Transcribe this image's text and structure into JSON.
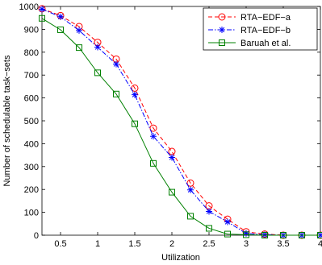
{
  "chart_data": {
    "type": "line",
    "xlabel": "Utilization",
    "ylabel": "Number of schedulable task−sets",
    "xlim": [
      0.25,
      4
    ],
    "ylim": [
      0,
      1000
    ],
    "xticks": [
      0.5,
      1,
      1.5,
      2,
      2.5,
      3,
      3.5,
      4
    ],
    "xtick_labels": [
      "0.5",
      "1",
      "1.5",
      "2",
      "2.5",
      "3",
      "3.5",
      "4"
    ],
    "yticks": [
      0,
      100,
      200,
      300,
      400,
      500,
      600,
      700,
      800,
      900,
      1000
    ],
    "ytick_labels": [
      "0",
      "100",
      "200",
      "300",
      "400",
      "500",
      "600",
      "700",
      "800",
      "900",
      "1000"
    ],
    "grid": false,
    "legend_position": "top-right",
    "x": [
      0.25,
      0.5,
      0.75,
      1.0,
      1.25,
      1.5,
      1.75,
      2.0,
      2.25,
      2.5,
      2.75,
      3.0,
      3.25,
      3.5,
      3.75,
      4.0
    ],
    "series": [
      {
        "name": "RTA−EDF−a",
        "color": "#ff0000",
        "line_style": "dashed",
        "marker": "circle",
        "values": [
          990,
          960,
          912,
          843,
          770,
          643,
          468,
          366,
          228,
          128,
          70,
          15,
          5,
          0,
          0,
          0
        ]
      },
      {
        "name": "RTA−EDF−b",
        "color": "#0000ff",
        "line_style": "dashdot",
        "marker": "asterisk",
        "values": [
          988,
          955,
          895,
          822,
          748,
          614,
          432,
          340,
          198,
          104,
          58,
          8,
          2,
          0,
          0,
          0
        ]
      },
      {
        "name": "Baruah et al.",
        "color": "#008000",
        "line_style": "solid",
        "marker": "square",
        "values": [
          948,
          898,
          820,
          710,
          617,
          487,
          314,
          188,
          83,
          30,
          5,
          2,
          0,
          0,
          0,
          0
        ]
      }
    ]
  }
}
